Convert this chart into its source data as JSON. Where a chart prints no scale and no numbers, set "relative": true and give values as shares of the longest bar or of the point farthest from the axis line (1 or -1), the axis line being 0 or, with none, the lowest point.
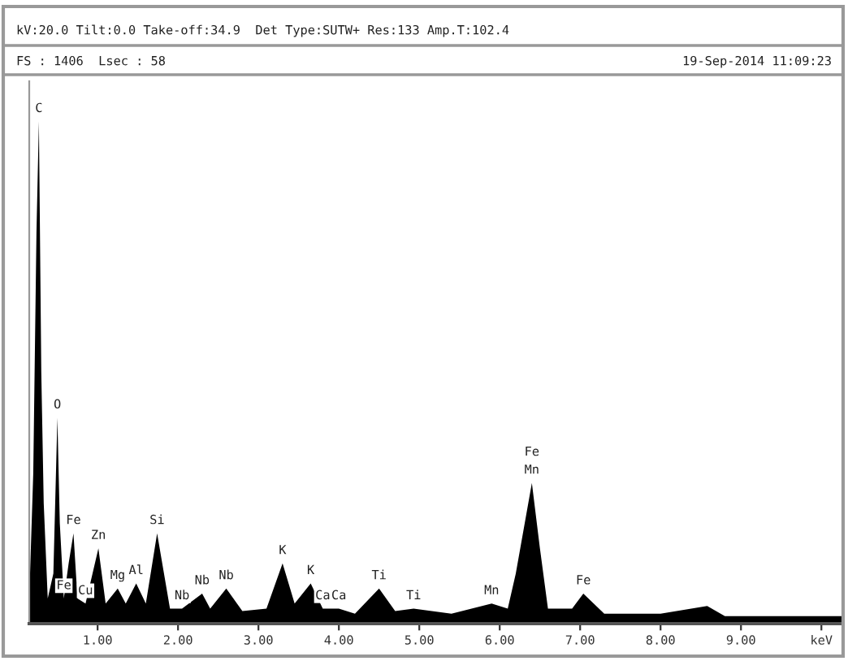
{
  "chart_data": {
    "type": "area",
    "relative": true,
    "color": "#000000",
    "grid": false,
    "x": [
      0.15,
      0.2,
      0.24,
      0.27,
      0.3,
      0.33,
      0.38,
      0.45,
      0.5,
      0.53,
      0.58,
      0.64,
      0.7,
      0.75,
      0.85,
      1.01,
      1.1,
      1.25,
      1.35,
      1.48,
      1.6,
      1.74,
      1.9,
      2.05,
      2.3,
      2.4,
      2.6,
      2.8,
      3.1,
      3.3,
      3.45,
      3.65,
      3.8,
      4.0,
      4.2,
      4.5,
      4.7,
      4.93,
      5.4,
      5.9,
      6.1,
      6.2,
      6.4,
      6.5,
      6.6,
      6.9,
      7.04,
      7.3,
      8.0,
      8.58,
      8.8,
      10.25
    ],
    "values": [
      0.05,
      0.3,
      0.78,
      1.0,
      0.5,
      0.24,
      0.05,
      0.1,
      0.41,
      0.2,
      0.05,
      0.12,
      0.18,
      0.05,
      0.04,
      0.15,
      0.04,
      0.07,
      0.04,
      0.08,
      0.04,
      0.18,
      0.03,
      0.03,
      0.06,
      0.03,
      0.07,
      0.025,
      0.03,
      0.12,
      0.04,
      0.08,
      0.03,
      0.03,
      0.02,
      0.07,
      0.025,
      0.03,
      0.02,
      0.04,
      0.03,
      0.1,
      0.28,
      0.15,
      0.03,
      0.03,
      0.06,
      0.02,
      0.02,
      0.035,
      0.015,
      0.015
    ],
    "xlim": [
      0.15,
      10.25
    ],
    "xticks": [
      {
        "value": 1,
        "label": "1.00"
      },
      {
        "value": 2,
        "label": "2.00"
      },
      {
        "value": 3,
        "label": "3.00"
      },
      {
        "value": 4,
        "label": "4.00"
      },
      {
        "value": 5,
        "label": "5.00"
      },
      {
        "value": 6,
        "label": "6.00"
      },
      {
        "value": 7,
        "label": "7.00"
      },
      {
        "value": 8,
        "label": "8.00"
      },
      {
        "value": 9,
        "label": "9.00"
      },
      {
        "value": 10,
        "label": "keV"
      }
    ],
    "annotations": [
      "kV:20.0 Tilt:0.0 Take-off:34.9  Det Type:SUTW+ Res:133 Amp.T:102.4",
      "FS : 1406  Lsec : 58",
      "19-Sep-2014 11:09:23",
      {
        "text": "C",
        "x": 0.27,
        "y": 1.0
      },
      {
        "text": "O",
        "x": 0.5,
        "y": 0.41
      },
      {
        "text": "Fe",
        "x": 0.7,
        "y": 0.18
      },
      {
        "text": "Fe",
        "x": 0.58,
        "y": 0.05
      },
      {
        "text": "Cu",
        "x": 0.85,
        "y": 0.04
      },
      {
        "text": "Zn",
        "x": 1.01,
        "y": 0.15
      },
      {
        "text": "Mg",
        "x": 1.25,
        "y": 0.07
      },
      {
        "text": "Al",
        "x": 1.48,
        "y": 0.08
      },
      {
        "text": "Si",
        "x": 1.74,
        "y": 0.18
      },
      {
        "text": "Nb",
        "x": 2.05,
        "y": 0.03
      },
      {
        "text": "Nb",
        "x": 2.3,
        "y": 0.06
      },
      {
        "text": "Nb",
        "x": 2.6,
        "y": 0.07
      },
      {
        "text": "K",
        "x": 3.3,
        "y": 0.12
      },
      {
        "text": "K",
        "x": 3.65,
        "y": 0.08
      },
      {
        "text": "Ca",
        "x": 3.8,
        "y": 0.03
      },
      {
        "text": "Ca",
        "x": 4.0,
        "y": 0.03
      },
      {
        "text": "Ti",
        "x": 4.5,
        "y": 0.07
      },
      {
        "text": "Ti",
        "x": 4.93,
        "y": 0.03
      },
      {
        "text": "Mn",
        "x": 5.9,
        "y": 0.04
      },
      {
        "text": "Fe",
        "x": 6.4,
        "y": 0.28
      },
      {
        "text": "Mn",
        "x": 6.4,
        "y": 0.28
      },
      {
        "text": "Fe",
        "x": 7.04,
        "y": 0.06
      }
    ]
  }
}
